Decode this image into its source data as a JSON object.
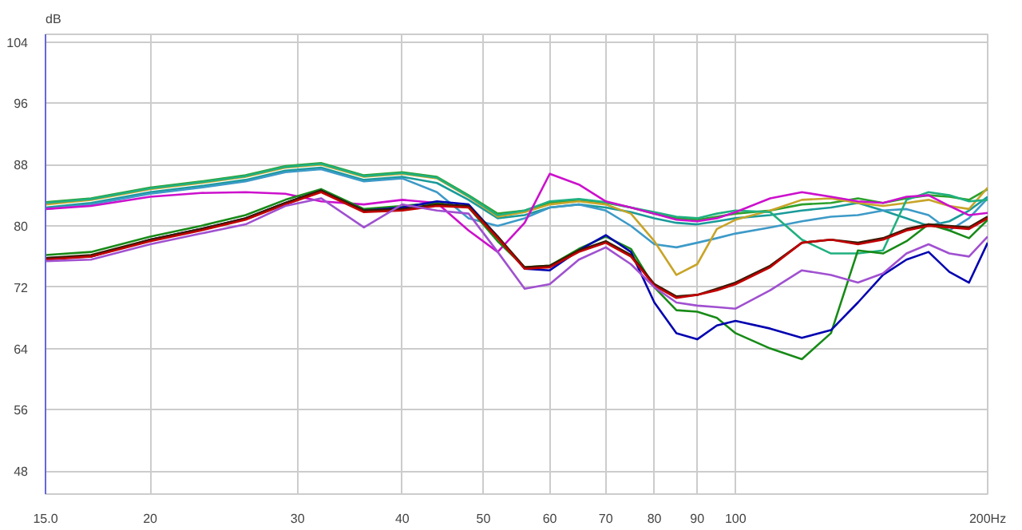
{
  "chart_data": {
    "type": "line",
    "ylabel": "dB",
    "log": "x",
    "grid": true,
    "line_style": "solid",
    "x": [
      15,
      17,
      20,
      23,
      26,
      29,
      32,
      36,
      40,
      44,
      48,
      52,
      56,
      60,
      65,
      70,
      75,
      80,
      85,
      90,
      95,
      100,
      110,
      120,
      130,
      140,
      150,
      160,
      170,
      180,
      190,
      200
    ],
    "xlim": [
      15,
      200
    ],
    "ylim": [
      45,
      105
    ],
    "xticks": [
      {
        "value": 15,
        "label": "15.0"
      },
      20,
      30,
      40,
      50,
      60,
      70,
      80,
      90,
      100,
      {
        "value": 200,
        "label": "200Hz"
      }
    ],
    "yticks": [
      48,
      56,
      64,
      72,
      80,
      88,
      96,
      104
    ],
    "series": [
      {
        "color": "#2ca02c",
        "values": [
          83.1,
          83.6,
          85.0,
          85.8,
          86.6,
          87.8,
          88.2,
          86.6,
          87.0,
          86.4,
          84.0,
          81.6,
          82.0,
          83.0,
          83.4,
          83.0,
          82.4,
          81.6,
          81.0,
          80.8,
          81.2,
          81.6,
          82.0,
          82.8,
          83.0,
          83.6,
          83.0,
          83.6,
          84.0,
          83.8,
          83.4,
          84.8
        ]
      },
      {
        "color": "#1a9a9a",
        "values": [
          82.4,
          83.0,
          84.4,
          85.2,
          86.0,
          87.2,
          87.6,
          86.0,
          86.4,
          85.6,
          83.4,
          81.0,
          81.4,
          82.4,
          82.8,
          82.4,
          81.8,
          81.0,
          80.4,
          80.2,
          80.6,
          81.0,
          81.4,
          82.0,
          82.4,
          83.0,
          82.0,
          81.0,
          80.0,
          80.6,
          82.0,
          83.8
        ]
      },
      {
        "color": "#3d9ac8",
        "values": [
          82.2,
          82.8,
          84.2,
          85.0,
          85.8,
          87.0,
          87.4,
          85.8,
          86.2,
          84.4,
          81.0,
          80.0,
          81.0,
          82.4,
          82.8,
          82.0,
          80.0,
          77.6,
          77.2,
          77.8,
          78.4,
          79.0,
          79.8,
          80.6,
          81.2,
          81.4,
          82.0,
          82.2,
          81.4,
          79.4,
          81.0,
          83.6
        ]
      },
      {
        "color": "#c8a428",
        "values": [
          82.8,
          83.4,
          84.8,
          85.6,
          86.4,
          87.6,
          88.0,
          86.4,
          86.8,
          86.2,
          83.8,
          81.2,
          81.8,
          82.8,
          83.2,
          82.8,
          81.6,
          78.0,
          73.6,
          75.0,
          79.6,
          80.8,
          82.0,
          83.4,
          83.6,
          83.0,
          82.6,
          83.0,
          83.4,
          82.6,
          82.2,
          85.0
        ]
      },
      {
        "color": "#20b080",
        "values": [
          83.0,
          83.5,
          84.9,
          85.7,
          86.5,
          87.7,
          88.1,
          86.5,
          86.9,
          86.3,
          83.9,
          81.4,
          82.0,
          83.2,
          83.5,
          83.1,
          82.4,
          81.8,
          81.2,
          81.0,
          81.6,
          82.0,
          81.8,
          78.2,
          76.4,
          76.4,
          76.8,
          83.4,
          84.4,
          84.0,
          83.2,
          83.4
        ]
      },
      {
        "color": "#cc10cc",
        "values": [
          82.2,
          82.6,
          83.8,
          84.3,
          84.4,
          84.2,
          83.2,
          82.8,
          83.4,
          83.0,
          79.4,
          76.6,
          80.4,
          86.8,
          85.4,
          83.2,
          82.4,
          81.6,
          80.8,
          80.6,
          81.0,
          81.8,
          83.6,
          84.4,
          83.8,
          83.2,
          83.0,
          83.8,
          84.0,
          82.6,
          81.4,
          81.7
        ]
      },
      {
        "color": "#178a17",
        "values": [
          76.2,
          76.6,
          78.6,
          80.0,
          81.4,
          83.4,
          84.8,
          82.2,
          82.6,
          83.0,
          82.4,
          78.0,
          74.6,
          74.8,
          77.0,
          78.6,
          77.0,
          72.0,
          69.0,
          68.8,
          68.0,
          66.0,
          64.0,
          62.6,
          66.0,
          76.8,
          76.4,
          78.0,
          80.2,
          79.4,
          78.4,
          80.8
        ]
      },
      {
        "color": "#0000b0",
        "values": [
          75.8,
          76.0,
          78.2,
          79.6,
          81.0,
          83.0,
          84.6,
          82.0,
          82.4,
          83.2,
          82.8,
          78.6,
          74.4,
          74.2,
          76.8,
          78.8,
          76.6,
          70.0,
          66.0,
          65.2,
          67.0,
          67.6,
          66.6,
          65.4,
          66.4,
          70.0,
          73.6,
          75.6,
          76.6,
          74.0,
          72.6,
          77.8
        ]
      },
      {
        "color": "#3a1a00",
        "values": [
          75.8,
          76.2,
          78.2,
          79.6,
          81.0,
          83.0,
          84.6,
          82.0,
          82.2,
          82.8,
          82.6,
          78.6,
          74.6,
          74.8,
          76.8,
          78.0,
          76.2,
          72.4,
          70.8,
          71.0,
          71.8,
          72.6,
          74.8,
          77.8,
          78.2,
          77.8,
          78.4,
          79.6,
          80.2,
          80.0,
          79.8,
          81.2
        ]
      },
      {
        "color": "#c00000",
        "values": [
          75.6,
          76.0,
          78.0,
          79.4,
          80.8,
          82.8,
          84.4,
          81.8,
          82.0,
          82.6,
          82.4,
          78.4,
          74.4,
          74.6,
          76.6,
          77.8,
          76.0,
          72.2,
          70.6,
          71.0,
          71.6,
          72.4,
          74.6,
          77.8,
          78.2,
          77.6,
          78.2,
          79.4,
          80.0,
          79.8,
          79.6,
          81.0
        ]
      },
      {
        "color": "#a050d0",
        "values": [
          75.4,
          75.6,
          77.6,
          79.0,
          80.2,
          82.6,
          83.6,
          79.8,
          82.8,
          82.0,
          81.6,
          76.6,
          71.8,
          72.4,
          75.6,
          77.2,
          75.0,
          72.0,
          70.0,
          69.6,
          69.4,
          69.2,
          71.6,
          74.2,
          73.6,
          72.6,
          73.8,
          76.4,
          77.6,
          76.4,
          76.0,
          78.6
        ]
      }
    ]
  }
}
